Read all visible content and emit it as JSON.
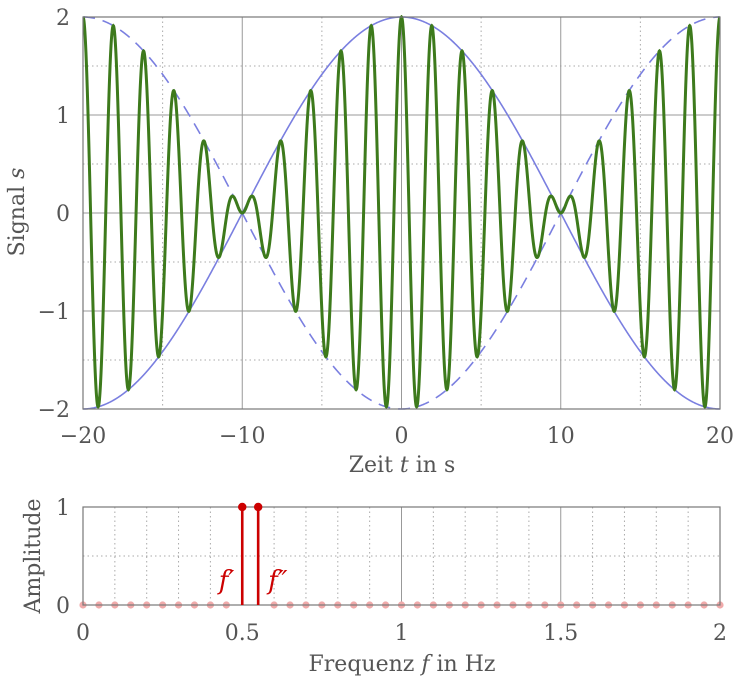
{
  "chart_data": [
    {
      "type": "line",
      "xlabel": "Zeit t in s",
      "ylabel": "Signal s",
      "xlim": [
        -20,
        20
      ],
      "ylim": [
        -2,
        2
      ],
      "xticks": [
        -20,
        -10,
        0,
        10,
        20
      ],
      "yticks": [
        -2,
        -1,
        0,
        1,
        2
      ],
      "xtick_labels": [
        "−20",
        "−10",
        "0",
        "10",
        "20"
      ],
      "ytick_labels": [
        "−2",
        "−1",
        "0",
        "1",
        "2"
      ],
      "minor_grid": true,
      "series": [
        {
          "function": "2*cos(2*pi*0.025*t)*cos(2*pi*0.525*t)",
          "color": "#3d7a1c",
          "style": "solid"
        },
        {
          "function": "2*cos(2*pi*0.025*t)",
          "color": "#7a7fe0",
          "style": "solid"
        },
        {
          "function": "-2*cos(2*pi*0.025*t)",
          "color": "#7a7fe0",
          "style": "dashed"
        }
      ]
    },
    {
      "type": "stem",
      "xlabel": "Frequenz f in Hz",
      "ylabel": "Amplitude",
      "xlim": [
        0,
        2
      ],
      "ylim": [
        0,
        1
      ],
      "xticks": [
        0,
        0.5,
        1,
        1.5,
        2
      ],
      "yticks": [
        0,
        1
      ],
      "xtick_labels": [
        "0",
        "0.5",
        "1",
        "1.5",
        "2"
      ],
      "ytick_labels": [
        "0",
        "1"
      ],
      "x": [
        0.5,
        0.55
      ],
      "values": [
        1,
        1
      ],
      "labels": [
        "f′",
        "f″"
      ],
      "zero_stems_spacing": 0.05,
      "color": "#cc0000"
    }
  ]
}
